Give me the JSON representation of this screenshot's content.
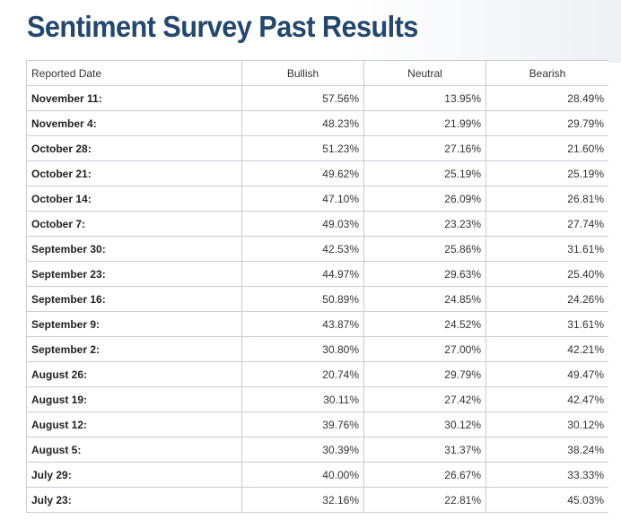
{
  "page": {
    "title": "Sentiment Survey Past Results"
  },
  "table": {
    "headers": {
      "date": "Reported Date",
      "bullish": "Bullish",
      "neutral": "Neutral",
      "bearish": "Bearish"
    },
    "rows": [
      {
        "date": "November 11:",
        "bullish": "57.56%",
        "neutral": "13.95%",
        "bearish": "28.49%"
      },
      {
        "date": "November 4:",
        "bullish": "48.23%",
        "neutral": "21.99%",
        "bearish": "29.79%"
      },
      {
        "date": "October 28:",
        "bullish": "51.23%",
        "neutral": "27.16%",
        "bearish": "21.60%"
      },
      {
        "date": "October 21:",
        "bullish": "49.62%",
        "neutral": "25.19%",
        "bearish": "25.19%"
      },
      {
        "date": "October 14:",
        "bullish": "47.10%",
        "neutral": "26.09%",
        "bearish": "26.81%"
      },
      {
        "date": "October 7:",
        "bullish": "49.03%",
        "neutral": "23.23%",
        "bearish": "27.74%"
      },
      {
        "date": "September 30:",
        "bullish": "42.53%",
        "neutral": "25.86%",
        "bearish": "31.61%"
      },
      {
        "date": "September 23:",
        "bullish": "44.97%",
        "neutral": "29.63%",
        "bearish": "25.40%"
      },
      {
        "date": "September 16:",
        "bullish": "50.89%",
        "neutral": "24.85%",
        "bearish": "24.26%"
      },
      {
        "date": "September 9:",
        "bullish": "43.87%",
        "neutral": "24.52%",
        "bearish": "31.61%"
      },
      {
        "date": "September 2:",
        "bullish": "30.80%",
        "neutral": "27.00%",
        "bearish": "42.21%"
      },
      {
        "date": "August 26:",
        "bullish": "20.74%",
        "neutral": "29.79%",
        "bearish": "49.47%"
      },
      {
        "date": "August 19:",
        "bullish": "30.11%",
        "neutral": "27.42%",
        "bearish": "42.47%"
      },
      {
        "date": "August 12:",
        "bullish": "39.76%",
        "neutral": "30.12%",
        "bearish": "30.12%"
      },
      {
        "date": "August 5:",
        "bullish": "30.39%",
        "neutral": "31.37%",
        "bearish": "38.24%"
      },
      {
        "date": "July 29:",
        "bullish": "40.00%",
        "neutral": "26.67%",
        "bearish": "33.33%"
      },
      {
        "date": "July 23:",
        "bullish": "32.16%",
        "neutral": "22.81%",
        "bearish": "45.03%"
      }
    ]
  },
  "colors": {
    "title": "#24476d",
    "border": "#c8ccd4",
    "text": "#222222"
  }
}
